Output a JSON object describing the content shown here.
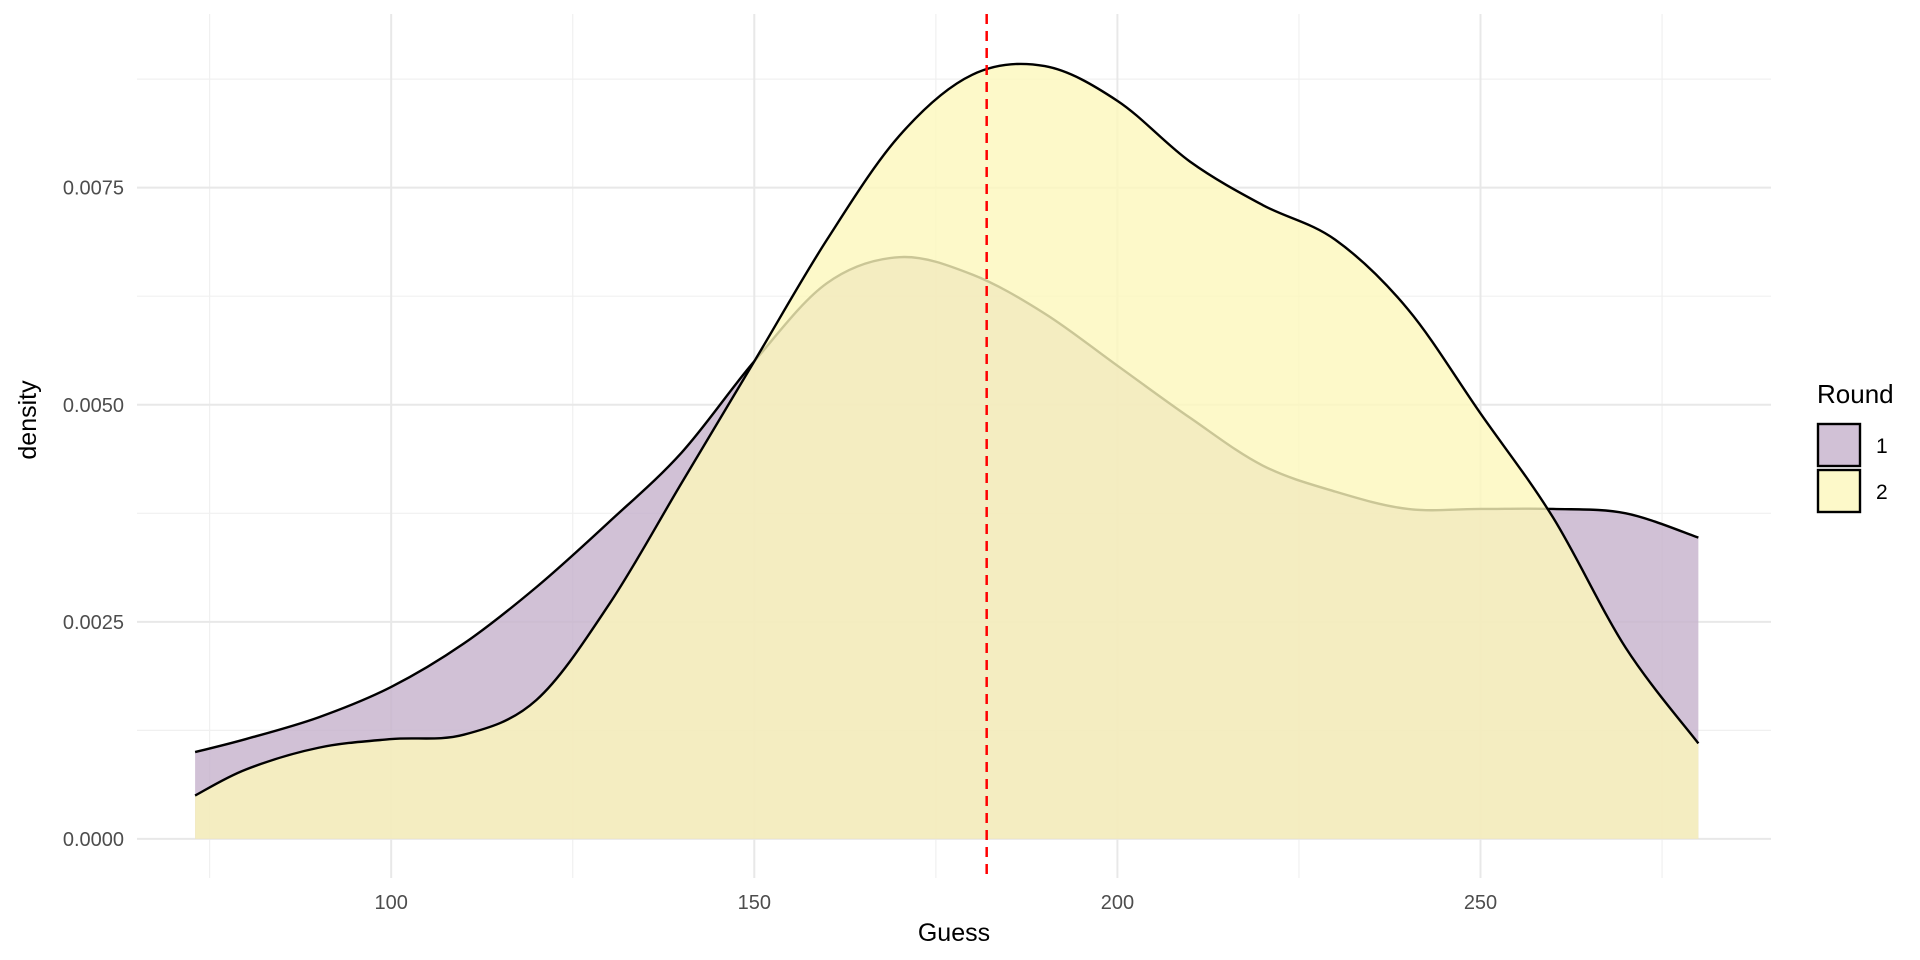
{
  "chart_data": {
    "type": "area",
    "xlabel": "Guess",
    "ylabel": "density",
    "xlim": [
      65,
      290
    ],
    "ylim": [
      -0.00045,
      0.0095
    ],
    "x_ticks": [
      {
        "value": 100,
        "label": "100"
      },
      {
        "value": 150,
        "label": "150"
      },
      {
        "value": 200,
        "label": "200"
      },
      {
        "value": 250,
        "label": "250"
      }
    ],
    "y_ticks": [
      {
        "value": 0.0,
        "label": "0.0000"
      },
      {
        "value": 0.0025,
        "label": "0.0025"
      },
      {
        "value": 0.005,
        "label": "0.0050"
      },
      {
        "value": 0.0075,
        "label": "0.0075"
      }
    ],
    "grid": true,
    "legend": {
      "title": "Round",
      "position": "right"
    },
    "reference_line": {
      "x": 182,
      "color": "#ff0000",
      "style": "dashed"
    },
    "series": [
      {
        "name": "1",
        "fill": "#c6b1cc",
        "x": [
          73,
          80,
          90,
          100,
          110,
          120,
          130,
          140,
          150,
          160,
          170,
          180,
          190,
          200,
          210,
          220,
          230,
          240,
          250,
          260,
          270,
          280
        ],
        "y": [
          0.001,
          0.00115,
          0.0014,
          0.00175,
          0.00225,
          0.0029,
          0.00365,
          0.00445,
          0.0055,
          0.0064,
          0.0067,
          0.0065,
          0.00605,
          0.00545,
          0.00485,
          0.0043,
          0.004,
          0.0038,
          0.0038,
          0.0038,
          0.00375,
          0.00347
        ]
      },
      {
        "name": "2",
        "fill": "#fdf7bb",
        "x": [
          73,
          80,
          90,
          100,
          110,
          120,
          130,
          140,
          150,
          160,
          170,
          180,
          190,
          200,
          210,
          220,
          230,
          240,
          250,
          260,
          270,
          280
        ],
        "y": [
          0.0005,
          0.0008,
          0.00105,
          0.00115,
          0.0012,
          0.0016,
          0.0027,
          0.0041,
          0.0055,
          0.0069,
          0.0081,
          0.0088,
          0.0089,
          0.0085,
          0.0078,
          0.0073,
          0.0069,
          0.0061,
          0.0049,
          0.0037,
          0.0022,
          0.0011
        ]
      }
    ]
  }
}
